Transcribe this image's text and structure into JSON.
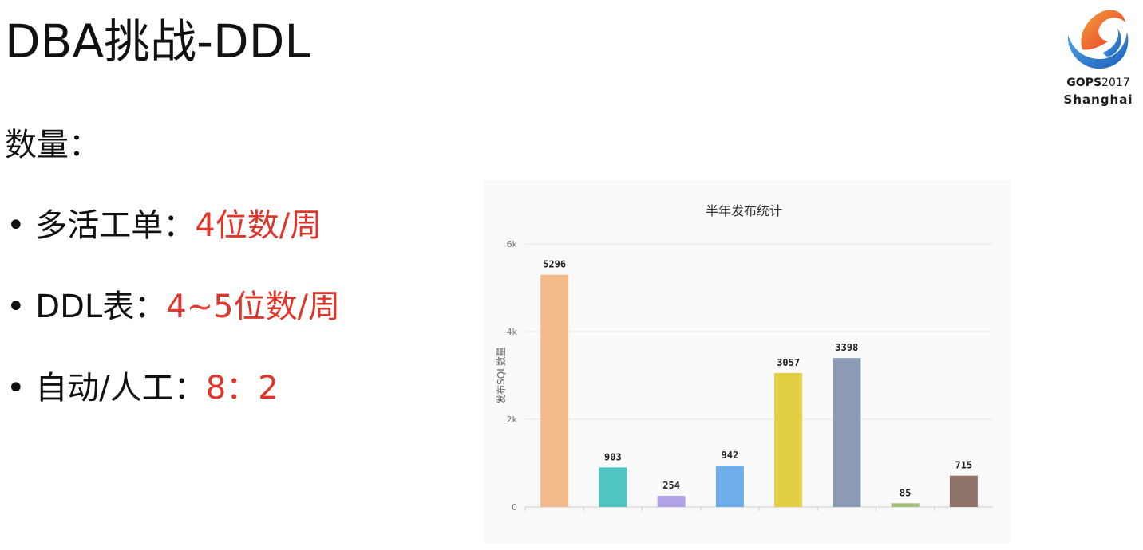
{
  "slide": {
    "title": "DBA挑战-DDL",
    "subtitle": "数量：",
    "bullets": [
      {
        "label": "• 多活工单：",
        "value": "4位数/周"
      },
      {
        "label": "• DDL表：",
        "value": "4~5位数/周"
      },
      {
        "label": "• 自动/人工：",
        "value": "8：2"
      }
    ],
    "accent_color": "#e0352b"
  },
  "logo": {
    "brand": "GOPS",
    "year": "2017",
    "city": "Shanghai",
    "icon": "gops-flame-logo"
  },
  "chart_data": {
    "type": "bar",
    "title": "半年发布统计",
    "ylabel": "发布SQL数量",
    "xlabel": "",
    "ylim": [
      0,
      6000
    ],
    "yticks": [
      "0",
      "2k",
      "4k",
      "6k"
    ],
    "ytick_values": [
      0,
      2000,
      4000,
      6000
    ],
    "grid": true,
    "values": [
      5296,
      903,
      254,
      942,
      3057,
      3398,
      85,
      715
    ],
    "colors": [
      "#f4bb8a",
      "#4fc5c4",
      "#b3a3e6",
      "#6fb0ec",
      "#e3cf44",
      "#8c9cb5",
      "#a8c17a",
      "#8e736a"
    ]
  }
}
